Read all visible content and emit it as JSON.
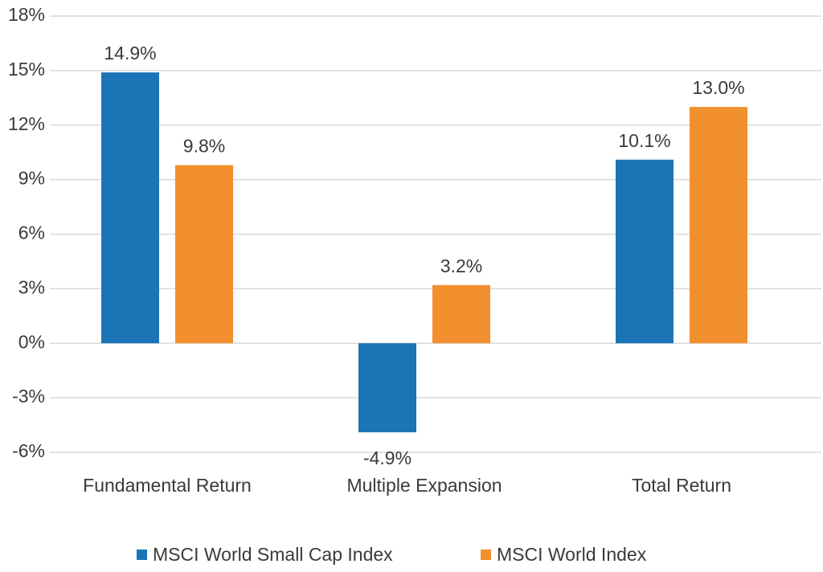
{
  "chart_data": {
    "type": "bar",
    "categories": [
      "Fundamental Return",
      "Multiple Expansion",
      "Total Return"
    ],
    "series": [
      {
        "name": "MSCI World Small Cap Index",
        "color": "#1a74b6",
        "values": [
          14.9,
          -4.9,
          10.1
        ],
        "value_labels": [
          "14.9%",
          "-4.9%",
          "10.1%"
        ]
      },
      {
        "name": "MSCI World Index",
        "color": "#f28f2e",
        "values": [
          9.8,
          3.2,
          13.0
        ],
        "value_labels": [
          "9.8%",
          "3.2%",
          "13.0%"
        ]
      }
    ],
    "ylim": [
      -6,
      18
    ],
    "yticks": [
      {
        "value": -6,
        "label": "-6%"
      },
      {
        "value": -3,
        "label": "-3%"
      },
      {
        "value": 0,
        "label": "0%"
      },
      {
        "value": 3,
        "label": "3%"
      },
      {
        "value": 6,
        "label": "6%"
      },
      {
        "value": 9,
        "label": "9%"
      },
      {
        "value": 12,
        "label": "12%"
      },
      {
        "value": 15,
        "label": "15%"
      },
      {
        "value": 18,
        "label": "18%"
      }
    ],
    "grid": true,
    "legend": "bottom"
  }
}
